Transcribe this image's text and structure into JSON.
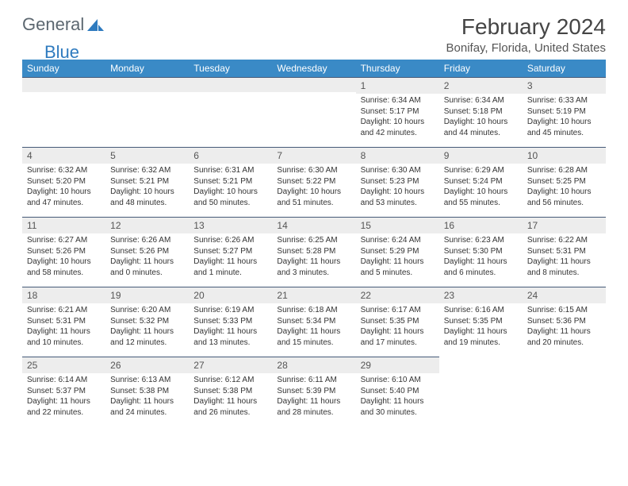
{
  "brand": {
    "part1": "General",
    "part2": "Blue"
  },
  "title": "February 2024",
  "location": "Bonifay, Florida, United States",
  "colors": {
    "header_bg": "#3a8ac6",
    "header_text": "#ffffff",
    "band_bg": "#ededed",
    "band_border": "#455a78",
    "logo_gray": "#5c6770",
    "logo_blue": "#2f7bbf"
  },
  "weekdays": [
    "Sunday",
    "Monday",
    "Tuesday",
    "Wednesday",
    "Thursday",
    "Friday",
    "Saturday"
  ],
  "layout": {
    "leading_blanks": 4,
    "days_in_month": 29
  },
  "days": {
    "1": {
      "sunrise": "Sunrise: 6:34 AM",
      "sunset": "Sunset: 5:17 PM",
      "daylight": "Daylight: 10 hours and 42 minutes."
    },
    "2": {
      "sunrise": "Sunrise: 6:34 AM",
      "sunset": "Sunset: 5:18 PM",
      "daylight": "Daylight: 10 hours and 44 minutes."
    },
    "3": {
      "sunrise": "Sunrise: 6:33 AM",
      "sunset": "Sunset: 5:19 PM",
      "daylight": "Daylight: 10 hours and 45 minutes."
    },
    "4": {
      "sunrise": "Sunrise: 6:32 AM",
      "sunset": "Sunset: 5:20 PM",
      "daylight": "Daylight: 10 hours and 47 minutes."
    },
    "5": {
      "sunrise": "Sunrise: 6:32 AM",
      "sunset": "Sunset: 5:21 PM",
      "daylight": "Daylight: 10 hours and 48 minutes."
    },
    "6": {
      "sunrise": "Sunrise: 6:31 AM",
      "sunset": "Sunset: 5:21 PM",
      "daylight": "Daylight: 10 hours and 50 minutes."
    },
    "7": {
      "sunrise": "Sunrise: 6:30 AM",
      "sunset": "Sunset: 5:22 PM",
      "daylight": "Daylight: 10 hours and 51 minutes."
    },
    "8": {
      "sunrise": "Sunrise: 6:30 AM",
      "sunset": "Sunset: 5:23 PM",
      "daylight": "Daylight: 10 hours and 53 minutes."
    },
    "9": {
      "sunrise": "Sunrise: 6:29 AM",
      "sunset": "Sunset: 5:24 PM",
      "daylight": "Daylight: 10 hours and 55 minutes."
    },
    "10": {
      "sunrise": "Sunrise: 6:28 AM",
      "sunset": "Sunset: 5:25 PM",
      "daylight": "Daylight: 10 hours and 56 minutes."
    },
    "11": {
      "sunrise": "Sunrise: 6:27 AM",
      "sunset": "Sunset: 5:26 PM",
      "daylight": "Daylight: 10 hours and 58 minutes."
    },
    "12": {
      "sunrise": "Sunrise: 6:26 AM",
      "sunset": "Sunset: 5:26 PM",
      "daylight": "Daylight: 11 hours and 0 minutes."
    },
    "13": {
      "sunrise": "Sunrise: 6:26 AM",
      "sunset": "Sunset: 5:27 PM",
      "daylight": "Daylight: 11 hours and 1 minute."
    },
    "14": {
      "sunrise": "Sunrise: 6:25 AM",
      "sunset": "Sunset: 5:28 PM",
      "daylight": "Daylight: 11 hours and 3 minutes."
    },
    "15": {
      "sunrise": "Sunrise: 6:24 AM",
      "sunset": "Sunset: 5:29 PM",
      "daylight": "Daylight: 11 hours and 5 minutes."
    },
    "16": {
      "sunrise": "Sunrise: 6:23 AM",
      "sunset": "Sunset: 5:30 PM",
      "daylight": "Daylight: 11 hours and 6 minutes."
    },
    "17": {
      "sunrise": "Sunrise: 6:22 AM",
      "sunset": "Sunset: 5:31 PM",
      "daylight": "Daylight: 11 hours and 8 minutes."
    },
    "18": {
      "sunrise": "Sunrise: 6:21 AM",
      "sunset": "Sunset: 5:31 PM",
      "daylight": "Daylight: 11 hours and 10 minutes."
    },
    "19": {
      "sunrise": "Sunrise: 6:20 AM",
      "sunset": "Sunset: 5:32 PM",
      "daylight": "Daylight: 11 hours and 12 minutes."
    },
    "20": {
      "sunrise": "Sunrise: 6:19 AM",
      "sunset": "Sunset: 5:33 PM",
      "daylight": "Daylight: 11 hours and 13 minutes."
    },
    "21": {
      "sunrise": "Sunrise: 6:18 AM",
      "sunset": "Sunset: 5:34 PM",
      "daylight": "Daylight: 11 hours and 15 minutes."
    },
    "22": {
      "sunrise": "Sunrise: 6:17 AM",
      "sunset": "Sunset: 5:35 PM",
      "daylight": "Daylight: 11 hours and 17 minutes."
    },
    "23": {
      "sunrise": "Sunrise: 6:16 AM",
      "sunset": "Sunset: 5:35 PM",
      "daylight": "Daylight: 11 hours and 19 minutes."
    },
    "24": {
      "sunrise": "Sunrise: 6:15 AM",
      "sunset": "Sunset: 5:36 PM",
      "daylight": "Daylight: 11 hours and 20 minutes."
    },
    "25": {
      "sunrise": "Sunrise: 6:14 AM",
      "sunset": "Sunset: 5:37 PM",
      "daylight": "Daylight: 11 hours and 22 minutes."
    },
    "26": {
      "sunrise": "Sunrise: 6:13 AM",
      "sunset": "Sunset: 5:38 PM",
      "daylight": "Daylight: 11 hours and 24 minutes."
    },
    "27": {
      "sunrise": "Sunrise: 6:12 AM",
      "sunset": "Sunset: 5:38 PM",
      "daylight": "Daylight: 11 hours and 26 minutes."
    },
    "28": {
      "sunrise": "Sunrise: 6:11 AM",
      "sunset": "Sunset: 5:39 PM",
      "daylight": "Daylight: 11 hours and 28 minutes."
    },
    "29": {
      "sunrise": "Sunrise: 6:10 AM",
      "sunset": "Sunset: 5:40 PM",
      "daylight": "Daylight: 11 hours and 30 minutes."
    }
  }
}
